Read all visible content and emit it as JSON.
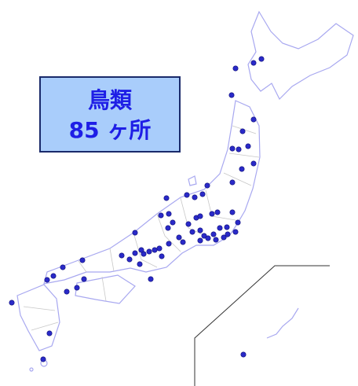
{
  "label": {
    "title": "鳥類",
    "count": "85 ヶ所"
  }
}
